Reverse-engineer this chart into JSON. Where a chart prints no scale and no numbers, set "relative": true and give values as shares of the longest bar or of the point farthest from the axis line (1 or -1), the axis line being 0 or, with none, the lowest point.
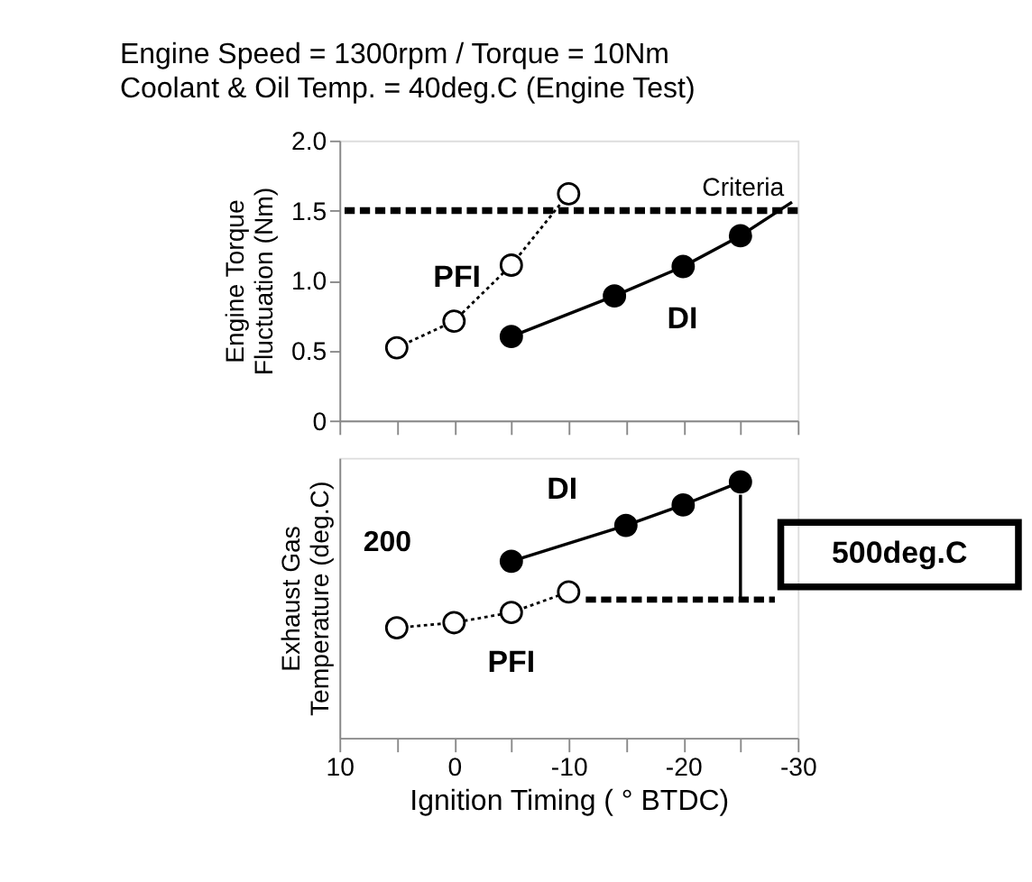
{
  "chart_data": [
    {
      "type": "line",
      "marker": "circle",
      "title": "Engine Speed = 1300rpm / Torque = 10Nm",
      "subtitle": "Coolant & Oil Temp. = 40deg.C (Engine Test)",
      "ylabel": "Engine Torque Fluctuation (Nm)",
      "xlim": [
        10,
        -30
      ],
      "xticks": [
        10,
        {
          "value": 5,
          "label": null
        },
        0,
        {
          "value": -5,
          "label": null
        },
        -10,
        {
          "value": -15,
          "label": null
        },
        -20,
        {
          "value": -25,
          "label": null
        },
        -30
      ],
      "ylim": [
        0,
        2.0
      ],
      "yticks": [
        0,
        {
          "value": 0.5,
          "label": "0.5"
        },
        {
          "value": 1.0,
          "label": "1.0"
        },
        {
          "value": 1.5,
          "label": "1.5"
        },
        {
          "value": 2.0,
          "label": "2.0"
        }
      ],
      "tick_labels": "y",
      "grid": false,
      "series": [
        {
          "name": "PFI",
          "color": "#000000",
          "line_style": "dotted",
          "x": [
            5,
            0,
            -5,
            -10
          ],
          "values": [
            0.52,
            0.71,
            1.11,
            1.62
          ]
        },
        {
          "name": "DI",
          "color": "#000000",
          "line_style": "solid",
          "x": [
            -5,
            -14,
            -20,
            -25
          ],
          "values": [
            0.6,
            0.89,
            1.1,
            1.32
          ]
        },
        {
          "type": "line",
          "marker": "none",
          "color": "#000000",
          "line_style": "solid",
          "x": [
            -25,
            -29.5
          ],
          "values": [
            1.32,
            1.56
          ]
        }
      ],
      "ref_lines": [
        {
          "axis": "y",
          "value": 1.5,
          "label": "Criteria",
          "color": "#000000",
          "line_style": "dashed"
        }
      ]
    },
    {
      "type": "line",
      "marker": "circle",
      "relative": true,
      "xlabel": "Ignition Timing ( ° BTDC)",
      "ylabel": "Exhaust Gas Temperature (deg.C)",
      "xlim": [
        10,
        -30
      ],
      "xticks": [
        10,
        {
          "value": 5,
          "label": null
        },
        0,
        {
          "value": -5,
          "label": null
        },
        -10,
        {
          "value": -15,
          "label": null
        },
        -20,
        {
          "value": -25,
          "label": null
        },
        -30
      ],
      "tick_labels": "x",
      "grid": false,
      "series": [
        {
          "name": "PFI",
          "color": "#000000",
          "line_style": "dotted",
          "x": [
            5,
            0,
            -5,
            -10
          ],
          "values": [
            0.43,
            0.45,
            0.49,
            0.57
          ]
        },
        {
          "name": "DI",
          "color": "#000000",
          "line_style": "solid",
          "x": [
            -5,
            -15,
            -20,
            -25
          ],
          "values": [
            0.69,
            0.83,
            0.91,
            1.0
          ]
        },
        {
          "type": "line",
          "marker": "none",
          "color": "#000000",
          "line_style": "dashed",
          "x": [
            -11.5,
            -28
          ],
          "values": [
            0.54,
            0.54
          ]
        },
        {
          "type": "line",
          "marker": "none",
          "color": "#000000",
          "line_style": "solid",
          "x": [
            -25,
            -25
          ],
          "values": [
            0.54,
            0.95
          ]
        }
      ],
      "annotations": [
        "200",
        "500deg.C"
      ]
    }
  ]
}
